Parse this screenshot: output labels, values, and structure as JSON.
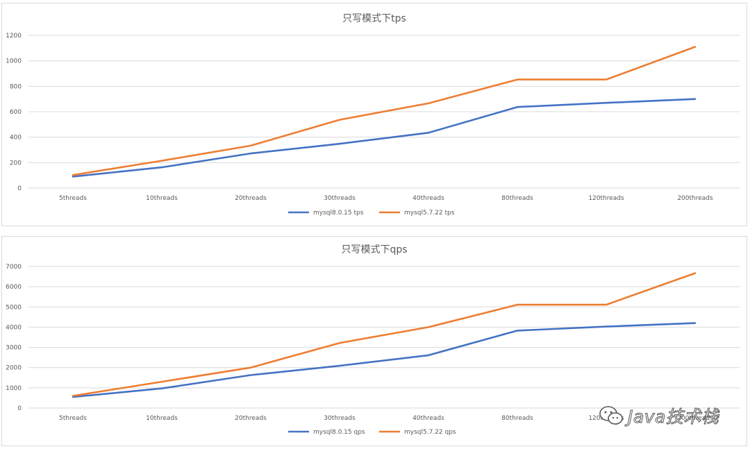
{
  "chart_data": [
    {
      "type": "line",
      "title": "只写模式下tps",
      "categories": [
        "5threads",
        "10threads",
        "20threads",
        "30threads",
        "40threads",
        "80threads",
        "120threads",
        "200threads"
      ],
      "series": [
        {
          "name": "mysql8.0.15 tps",
          "color": "#4472c4",
          "values": [
            90,
            163,
            272,
            348,
            435,
            637,
            670,
            700
          ]
        },
        {
          "name": "mysql5.7.22 tps",
          "color": "#ed7d31",
          "values": [
            102,
            215,
            333,
            537,
            666,
            853,
            853,
            1110
          ]
        }
      ],
      "ylim": [
        0,
        1200
      ],
      "yticks": [
        0,
        200,
        400,
        600,
        800,
        1000,
        1200
      ],
      "grid": true,
      "legend": "bottom"
    },
    {
      "type": "line",
      "title": "只写模式下qps",
      "categories": [
        "5threads",
        "10threads",
        "20threads",
        "30threads",
        "40threads",
        "80threads",
        "120threads",
        "200threads"
      ],
      "series": [
        {
          "name": "mysql8.0.15 qps",
          "color": "#4472c4",
          "values": [
            550,
            970,
            1630,
            2090,
            2610,
            3830,
            4030,
            4200
          ]
        },
        {
          "name": "mysql5.7.22 qps",
          "color": "#ed7d31",
          "values": [
            600,
            1300,
            2000,
            3220,
            4000,
            5110,
            5110,
            6670
          ]
        }
      ],
      "ylim": [
        0,
        7000
      ],
      "yticks": [
        0,
        1000,
        2000,
        3000,
        4000,
        5000,
        6000,
        7000
      ],
      "grid": true,
      "legend": "bottom"
    }
  ],
  "watermark": {
    "text": "Java技术栈",
    "icon": "wechat-icon"
  }
}
